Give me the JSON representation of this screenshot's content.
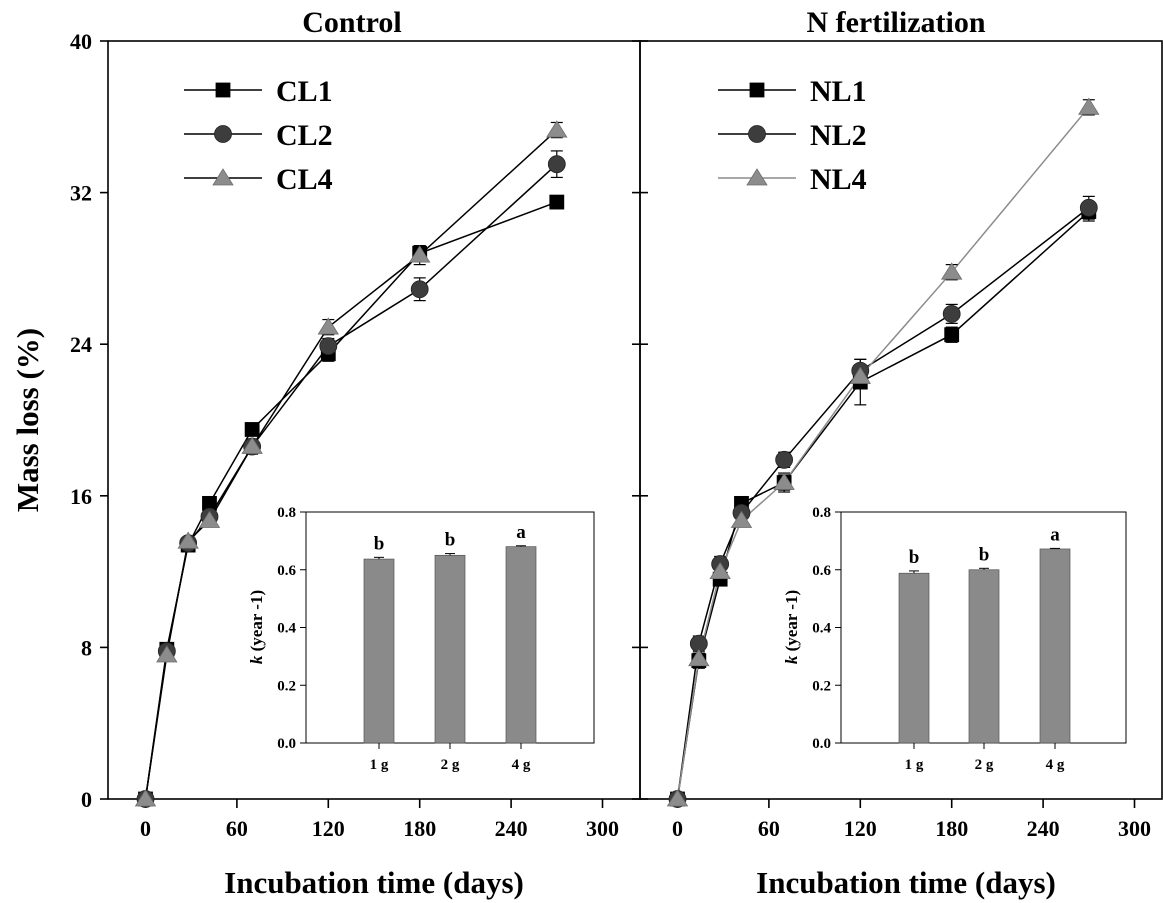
{
  "figure": {
    "ylabel": "Mass loss (%)",
    "xlabel": "Incubation time (days)"
  },
  "chart_data": [
    {
      "type": "line",
      "title": "Control",
      "xlabel": "Incubation time (days)",
      "ylabel": "Mass loss (%)",
      "xlim": [
        -20,
        300
      ],
      "ylim": [
        0,
        40
      ],
      "xticks": [
        0,
        60,
        120,
        180,
        240,
        300
      ],
      "yticks": [
        0,
        8,
        16,
        24,
        32,
        40
      ],
      "legend_position": "top-left",
      "series": [
        {
          "name": "CL1",
          "marker": "square",
          "color": "#000000",
          "marker_color": "#000000",
          "x": [
            0,
            14,
            28,
            42,
            70,
            120,
            180,
            270
          ],
          "y": [
            0,
            7.9,
            13.4,
            15.6,
            19.5,
            23.5,
            28.8,
            31.5
          ],
          "err": [
            0,
            0.2,
            0.2,
            0.3,
            0.3,
            0.4,
            0.4,
            0.3
          ]
        },
        {
          "name": "CL2",
          "marker": "circle",
          "color": "#000000",
          "marker_color": "#3d3d3d",
          "x": [
            0,
            14,
            28,
            42,
            70,
            120,
            180,
            270
          ],
          "y": [
            0,
            7.8,
            13.5,
            14.9,
            18.6,
            23.9,
            26.9,
            33.5
          ],
          "err": [
            0,
            0.2,
            0.2,
            0.3,
            0.4,
            0.4,
            0.6,
            0.7
          ]
        },
        {
          "name": "CL4",
          "marker": "triangle",
          "color": "#000000",
          "marker_color": "#8c8c8c",
          "x": [
            0,
            14,
            28,
            42,
            70,
            120,
            180,
            270
          ],
          "y": [
            0,
            7.6,
            13.6,
            14.7,
            18.6,
            24.9,
            28.7,
            35.3
          ],
          "err": [
            0,
            0.2,
            0.2,
            0.3,
            0.3,
            0.4,
            0.5,
            0.4
          ]
        }
      ]
    },
    {
      "type": "line",
      "title": "N fertilization",
      "xlabel": "Incubation time (days)",
      "ylabel": "",
      "xlim": [
        -20,
        300
      ],
      "ylim": [
        0,
        40
      ],
      "xticks": [
        0,
        60,
        120,
        180,
        240,
        300
      ],
      "yticks": [
        0,
        8,
        16,
        24,
        32,
        40
      ],
      "legend_position": "top-left",
      "series": [
        {
          "name": "NL1",
          "marker": "square",
          "color": "#000000",
          "marker_color": "#000000",
          "x": [
            0,
            14,
            28,
            42,
            70,
            120,
            180,
            270
          ],
          "y": [
            0,
            7.3,
            11.6,
            15.6,
            16.7,
            22.0,
            24.5,
            31.0
          ],
          "err": [
            0,
            0.4,
            0.3,
            0.3,
            0.5,
            1.2,
            0.4,
            0.5
          ]
        },
        {
          "name": "NL2",
          "marker": "circle",
          "color": "#000000",
          "marker_color": "#3d3d3d",
          "x": [
            0,
            14,
            28,
            42,
            70,
            120,
            180,
            270
          ],
          "y": [
            0,
            8.2,
            12.4,
            15.1,
            17.9,
            22.6,
            25.6,
            31.2
          ],
          "err": [
            0,
            0.4,
            0.4,
            0.3,
            0.4,
            0.6,
            0.5,
            0.6
          ]
        },
        {
          "name": "NL4",
          "marker": "triangle",
          "color": "#8c8c8c",
          "marker_color": "#8c8c8c",
          "x": [
            0,
            14,
            28,
            42,
            70,
            120,
            180,
            270
          ],
          "y": [
            0,
            7.4,
            12.0,
            14.7,
            16.7,
            22.3,
            27.8,
            36.5
          ],
          "err": [
            0,
            0.3,
            0.3,
            0.3,
            0.4,
            0.4,
            0.4,
            0.4
          ]
        }
      ]
    },
    {
      "type": "bar",
      "title": "",
      "inset_of": "Control",
      "xlabel": "",
      "ylabel": "k (year -1)",
      "ylabel_italic_part": "k",
      "ylabel_rest": " (year -1)",
      "ylim": [
        0,
        0.8
      ],
      "yticks": [
        "0.0",
        "0.2",
        "0.4",
        "0.6",
        "0.8"
      ],
      "categories": [
        "1 g",
        "2 g",
        "4 g"
      ],
      "values": [
        0.637,
        0.65,
        0.68
      ],
      "errors": [
        0.006,
        0.006,
        0.003
      ],
      "labels": [
        "b",
        "b",
        "a"
      ],
      "bar_color": "#8a8a8a"
    },
    {
      "type": "bar",
      "title": "",
      "inset_of": "N fertilization",
      "xlabel": "",
      "ylabel": "k (year -1)",
      "ylabel_italic_part": "k",
      "ylabel_rest": " (year -1)",
      "ylim": [
        0,
        0.8
      ],
      "yticks": [
        "0.0",
        "0.2",
        "0.4",
        "0.6",
        "0.8"
      ],
      "categories": [
        "1 g",
        "2 g",
        "4 g"
      ],
      "values": [
        0.588,
        0.6,
        0.672
      ],
      "errors": [
        0.008,
        0.005,
        0.002
      ],
      "labels": [
        "b",
        "b",
        "a"
      ],
      "bar_color": "#8a8a8a"
    }
  ]
}
